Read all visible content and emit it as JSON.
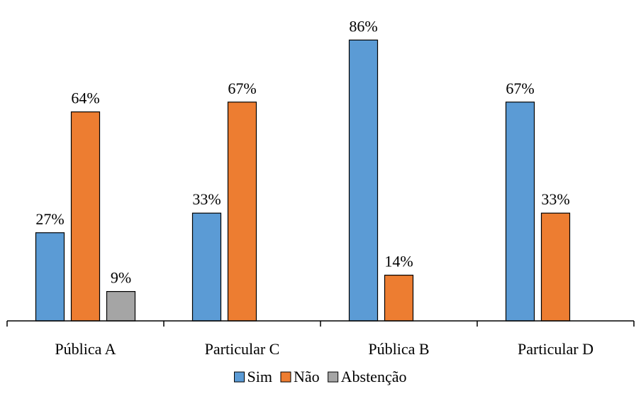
{
  "chart_data": {
    "type": "bar",
    "categories": [
      "Pública A",
      "Particular C",
      "Pública B",
      "Particular D"
    ],
    "series": [
      {
        "name": "Sim",
        "color": "#5B9BD5",
        "values": [
          27,
          33,
          86,
          67
        ],
        "labels": [
          "27%",
          "33%",
          "86%",
          "67%"
        ]
      },
      {
        "name": "Não",
        "color": "#ED7D31",
        "values": [
          64,
          67,
          14,
          33
        ],
        "labels": [
          "64%",
          "67%",
          "14%",
          "33%"
        ]
      },
      {
        "name": "Abstenção",
        "color": "#A5A5A5",
        "values": [
          9,
          null,
          null,
          null
        ],
        "labels": [
          "9%",
          null,
          null,
          null
        ]
      }
    ],
    "title": "",
    "xlabel": "",
    "ylabel": "",
    "ylim": [
      0,
      100
    ],
    "grid": false,
    "legend_position": "bottom"
  }
}
